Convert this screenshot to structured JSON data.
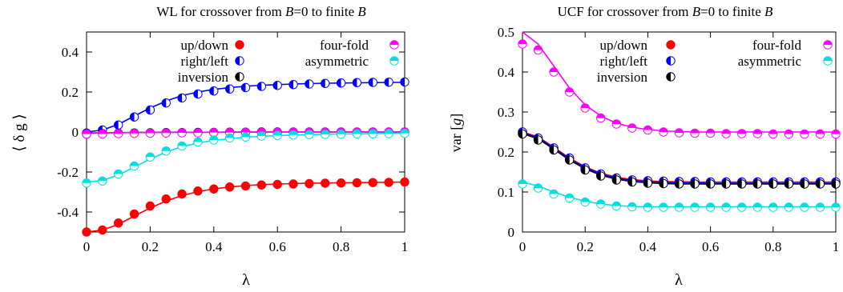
{
  "chart_data": [
    {
      "type": "scatter",
      "title_parts": [
        "WL for crossover from ",
        "B",
        "=0 to finite ",
        "B"
      ],
      "xlabel": "λ",
      "ylabel": "⟨ δ g ⟩",
      "xlim": [
        0,
        1
      ],
      "ylim": [
        -0.5,
        0.5
      ],
      "xticks": [
        0,
        0.2,
        0.4,
        0.6,
        0.8,
        1
      ],
      "xtick_labels": [
        "0",
        "0.2",
        "0.4",
        "0.6",
        "0.8",
        "1"
      ],
      "yticks": [
        -0.4,
        -0.2,
        0,
        0.2,
        0.4
      ],
      "ytick_labels": [
        "-0.4",
        "-0.2",
        "0",
        "0.2",
        "0.4"
      ],
      "grid": false,
      "legend": "top, two columns",
      "legend_entries": [
        {
          "label": "up/down",
          "series": "up/down",
          "col": 0,
          "row": 0
        },
        {
          "label": "right/left",
          "series": "right/left",
          "col": 0,
          "row": 1
        },
        {
          "label": "inversion",
          "series": "inversion",
          "col": 0,
          "row": 2
        },
        {
          "label": "four-fold",
          "series": "four-fold",
          "col": 1,
          "row": 0
        },
        {
          "label": "asymmetric",
          "series": "asymmetric",
          "col": 1,
          "row": 1
        }
      ],
      "x": [
        0,
        0.05,
        0.1,
        0.15,
        0.2,
        0.25,
        0.3,
        0.35,
        0.4,
        0.45,
        0.5,
        0.55,
        0.6,
        0.65,
        0.7,
        0.75,
        0.8,
        0.85,
        0.9,
        0.95,
        1.0
      ],
      "series": [
        {
          "name": "up/down",
          "marker": "filled",
          "color": "#ff0000",
          "values": [
            -0.5,
            -0.49,
            -0.455,
            -0.41,
            -0.37,
            -0.335,
            -0.31,
            -0.295,
            -0.285,
            -0.275,
            -0.27,
            -0.265,
            -0.262,
            -0.26,
            -0.258,
            -0.256,
            -0.255,
            -0.254,
            -0.253,
            -0.252,
            -0.25
          ],
          "curve": [
            -0.5,
            -0.49,
            -0.462,
            -0.42,
            -0.38,
            -0.345,
            -0.318,
            -0.298,
            -0.284,
            -0.275,
            -0.268,
            -0.263,
            -0.26,
            -0.258,
            -0.256,
            -0.255,
            -0.254,
            -0.253,
            -0.252,
            -0.251,
            -0.25
          ]
        },
        {
          "name": "right/left",
          "marker": "half-left",
          "color": "#0000ff",
          "values": [
            -0.005,
            0.01,
            0.035,
            0.075,
            0.11,
            0.145,
            0.17,
            0.19,
            0.205,
            0.215,
            0.222,
            0.228,
            0.233,
            0.237,
            0.24,
            0.243,
            0.245,
            0.247,
            0.248,
            0.249,
            0.25
          ],
          "curve": [
            0,
            0.01,
            0.038,
            0.08,
            0.12,
            0.155,
            0.182,
            0.2,
            0.213,
            0.222,
            0.229,
            0.234,
            0.237,
            0.24,
            0.242,
            0.244,
            0.245,
            0.246,
            0.247,
            0.248,
            0.248
          ]
        },
        {
          "name": "inversion",
          "marker": "half-left",
          "color": "#000000",
          "values": [
            -0.01,
            -0.008,
            -0.006,
            -0.005,
            -0.004,
            -0.003,
            -0.003,
            -0.002,
            -0.002,
            -0.001,
            -0.001,
            0,
            0,
            0,
            0,
            0,
            0,
            0,
            0,
            0,
            0
          ],
          "curve": [
            -0.005,
            -0.004,
            -0.003,
            -0.002,
            -0.002,
            -0.001,
            -0.001,
            -0.001,
            -0.001,
            0,
            0,
            0,
            0,
            0,
            0,
            0,
            0,
            0,
            0,
            0,
            0
          ]
        },
        {
          "name": "four-fold",
          "marker": "half-top",
          "color": "#ff00ff",
          "values": [
            -0.01,
            -0.01,
            -0.008,
            -0.007,
            -0.006,
            -0.005,
            -0.004,
            -0.004,
            -0.003,
            -0.003,
            -0.002,
            -0.002,
            -0.002,
            -0.001,
            -0.001,
            -0.001,
            -0.001,
            0,
            0,
            0,
            0
          ],
          "curve": [
            -0.004,
            -0.004,
            -0.003,
            -0.003,
            -0.002,
            -0.002,
            -0.002,
            -0.001,
            -0.001,
            -0.001,
            -0.001,
            0,
            0,
            0,
            0,
            0,
            0,
            0,
            0,
            0,
            0
          ]
        },
        {
          "name": "asymmetric",
          "marker": "half-top",
          "color": "#00e0e0",
          "values": [
            -0.255,
            -0.245,
            -0.21,
            -0.17,
            -0.125,
            -0.095,
            -0.07,
            -0.05,
            -0.04,
            -0.03,
            -0.025,
            -0.02,
            -0.017,
            -0.015,
            -0.013,
            -0.012,
            -0.011,
            -0.01,
            -0.009,
            -0.008,
            -0.007
          ],
          "curve": [
            -0.25,
            -0.242,
            -0.215,
            -0.175,
            -0.135,
            -0.1,
            -0.073,
            -0.055,
            -0.042,
            -0.033,
            -0.026,
            -0.021,
            -0.018,
            -0.015,
            -0.013,
            -0.011,
            -0.01,
            -0.009,
            -0.008,
            -0.007,
            -0.006
          ]
        }
      ]
    },
    {
      "type": "scatter",
      "title_parts": [
        "UCF for crossover from ",
        "B",
        "=0 to finite ",
        "B"
      ],
      "xlabel": "λ",
      "ylabel_parts": [
        "var [",
        "g",
        "]"
      ],
      "xlim": [
        0,
        1
      ],
      "ylim": [
        0,
        0.5
      ],
      "xticks": [
        0,
        0.2,
        0.4,
        0.6,
        0.8,
        1
      ],
      "xtick_labels": [
        "0",
        "0.2",
        "0.4",
        "0.6",
        "0.8",
        "1"
      ],
      "yticks": [
        0,
        0.1,
        0.2,
        0.3,
        0.4,
        0.5
      ],
      "ytick_labels": [
        "0",
        "0.1",
        "0.2",
        "0.3",
        "0.4",
        "0.5"
      ],
      "grid": false,
      "legend": "top, two columns",
      "legend_entries": [
        {
          "label": "up/down",
          "series": "up/down",
          "col": 0,
          "row": 0
        },
        {
          "label": "right/left",
          "series": "right/left",
          "col": 0,
          "row": 1
        },
        {
          "label": "inversion",
          "series": "inversion",
          "col": 0,
          "row": 2
        },
        {
          "label": "four-fold",
          "series": "four-fold",
          "col": 1,
          "row": 0
        },
        {
          "label": "asymmetric",
          "series": "asymmetric",
          "col": 1,
          "row": 1
        }
      ],
      "x": [
        0,
        0.05,
        0.1,
        0.15,
        0.2,
        0.25,
        0.3,
        0.35,
        0.4,
        0.45,
        0.5,
        0.55,
        0.6,
        0.65,
        0.7,
        0.75,
        0.8,
        0.85,
        0.9,
        0.95,
        1.0
      ],
      "series": [
        {
          "name": "up/down",
          "marker": "filled",
          "color": "#ff0000",
          "values": [
            0.25,
            0.235,
            0.21,
            0.185,
            0.16,
            0.145,
            0.135,
            0.13,
            0.128,
            0.127,
            0.126,
            0.126,
            0.125,
            0.125,
            0.125,
            0.125,
            0.125,
            0.125,
            0.125,
            0.125,
            0.125
          ],
          "curve": [
            0.25,
            0.238,
            0.212,
            0.185,
            0.163,
            0.147,
            0.137,
            0.131,
            0.128,
            0.126,
            0.126,
            0.125,
            0.125,
            0.125,
            0.125,
            0.125,
            0.125,
            0.125,
            0.125,
            0.125,
            0.125
          ]
        },
        {
          "name": "right/left",
          "marker": "half-left",
          "color": "#0000ff",
          "values": [
            0.25,
            0.235,
            0.21,
            0.185,
            0.16,
            0.145,
            0.135,
            0.13,
            0.128,
            0.127,
            0.126,
            0.126,
            0.125,
            0.125,
            0.125,
            0.125,
            0.125,
            0.125,
            0.125,
            0.125,
            0.125
          ],
          "curve": [
            0.248,
            0.236,
            0.21,
            0.183,
            0.161,
            0.145,
            0.135,
            0.129,
            0.126,
            0.124,
            0.123,
            0.123,
            0.122,
            0.122,
            0.122,
            0.122,
            0.122,
            0.122,
            0.122,
            0.122,
            0.122
          ]
        },
        {
          "name": "inversion",
          "marker": "half-left",
          "color": "#000000",
          "values": [
            0.245,
            0.23,
            0.205,
            0.18,
            0.155,
            0.14,
            0.13,
            0.125,
            0.122,
            0.121,
            0.12,
            0.12,
            0.12,
            0.12,
            0.12,
            0.12,
            0.12,
            0.12,
            0.12,
            0.12,
            0.12
          ],
          "curve": [
            0.246,
            0.233,
            0.207,
            0.18,
            0.158,
            0.142,
            0.132,
            0.126,
            0.123,
            0.121,
            0.12,
            0.12,
            0.12,
            0.12,
            0.12,
            0.12,
            0.12,
            0.12,
            0.12,
            0.12,
            0.12
          ]
        },
        {
          "name": "four-fold",
          "marker": "half-top",
          "color": "#ff00ff",
          "values": [
            0.47,
            0.455,
            0.4,
            0.35,
            0.31,
            0.285,
            0.27,
            0.26,
            0.255,
            0.25,
            0.248,
            0.247,
            0.247,
            0.246,
            0.246,
            0.246,
            0.245,
            0.245,
            0.245,
            0.245,
            0.245
          ],
          "curve": [
            0.5,
            0.47,
            0.415,
            0.36,
            0.318,
            0.29,
            0.272,
            0.262,
            0.256,
            0.253,
            0.251,
            0.25,
            0.25,
            0.25,
            0.25,
            0.25,
            0.25,
            0.25,
            0.25,
            0.25,
            0.25
          ]
        },
        {
          "name": "asymmetric",
          "marker": "half-top",
          "color": "#00e0e0",
          "values": [
            0.12,
            0.11,
            0.095,
            0.085,
            0.075,
            0.07,
            0.065,
            0.063,
            0.062,
            0.062,
            0.062,
            0.062,
            0.062,
            0.062,
            0.062,
            0.062,
            0.062,
            0.062,
            0.062,
            0.062,
            0.062
          ],
          "curve": [
            0.125,
            0.115,
            0.1,
            0.087,
            0.077,
            0.07,
            0.066,
            0.064,
            0.063,
            0.063,
            0.063,
            0.063,
            0.063,
            0.063,
            0.063,
            0.063,
            0.063,
            0.063,
            0.063,
            0.063,
            0.063
          ]
        }
      ]
    }
  ]
}
